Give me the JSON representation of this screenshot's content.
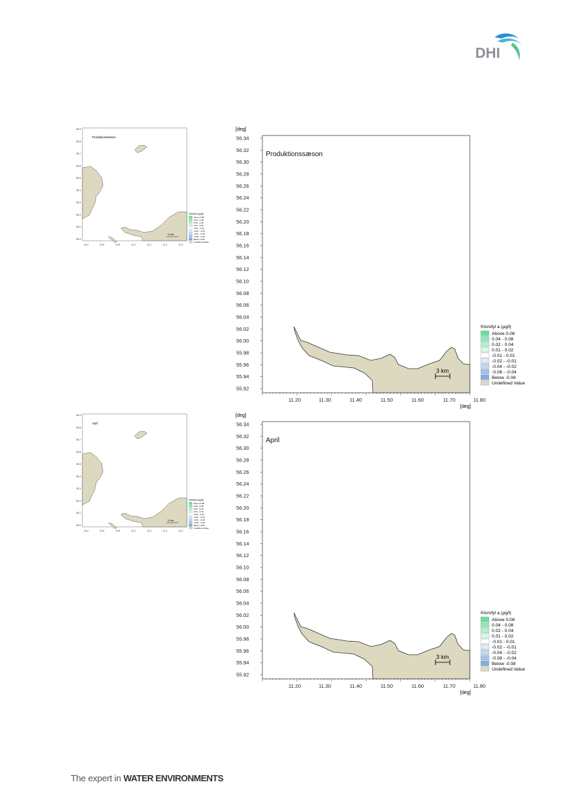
{
  "logo": {
    "text": "DHI"
  },
  "footer": {
    "prefix": "The expert in ",
    "bold": "WATER ENVIRONMENTS"
  },
  "colors": {
    "land": "#dcd9c0",
    "above": "#66e0a0"
  },
  "figures": [
    {
      "id": "production",
      "title": "Produktionssæson",
      "y_unit": "[deg]",
      "x_unit": "[deg]",
      "y_ticks": [
        "56.34",
        "56.32",
        "56.30",
        "56.28",
        "56.26",
        "56.24",
        "56.22",
        "56.20",
        "56.18",
        "56.16",
        "56.14",
        "56.12",
        "56.10",
        "56.08",
        "56.06",
        "56.04",
        "56.02",
        "56.00",
        "55.98",
        "55.96",
        "55.94",
        "55.92"
      ],
      "x_ticks": [
        "11.20",
        "11.30",
        "11.40",
        "11.50",
        "11.60",
        "11.70",
        "11.80"
      ],
      "scale_label": "3 km",
      "legend": {
        "title": "Klorofyl a (µg/l)",
        "items": [
          {
            "label": "Above  0.08",
            "color": "#66e0a0"
          },
          {
            "label": " 0.04 -  0.08",
            "color": "#8fe9b8"
          },
          {
            "label": " 0.02 -  0.04",
            "color": "#b5f0cf"
          },
          {
            "label": " 0.01 -  0.02",
            "color": "#daf7e6"
          },
          {
            "label": "-0.01 -  0.01",
            "color": "#ffffff"
          },
          {
            "label": "-0.02 - -0.01",
            "color": "#dfeaf8"
          },
          {
            "label": "-0.04 - -0.02",
            "color": "#c3d8f2"
          },
          {
            "label": "-0.08 - -0.04",
            "color": "#a2c3ec"
          },
          {
            "label": "Below -0.08",
            "color": "#7fade6"
          },
          {
            "label": "Undefined Value",
            "color": "#dcd9c0"
          }
        ]
      },
      "small": {
        "title": "Produktionssæson",
        "y_ticks": [
          "55.9",
          "55.8",
          "55.7",
          "55.6",
          "55.5",
          "55.4",
          "55.3",
          "55.2",
          "55.1",
          "55.0"
        ],
        "x_ticks": [
          "10.4",
          "10.6",
          "10.8",
          "11.0",
          "11.2",
          "11.4",
          "11.6"
        ],
        "scale_label": "10 km"
      }
    },
    {
      "id": "april",
      "title": "April",
      "y_unit": "[deg]",
      "x_unit": "[deg]",
      "y_ticks": [
        "56.34",
        "56.32",
        "56.30",
        "56.28",
        "56.26",
        "56.24",
        "56.22",
        "56.20",
        "56.18",
        "56.16",
        "56.14",
        "56.12",
        "56.10",
        "56.08",
        "56.06",
        "56.04",
        "56.02",
        "56.00",
        "55.98",
        "55.96",
        "55.94",
        "55.92"
      ],
      "x_ticks": [
        "11.20",
        "11.30",
        "11.40",
        "11.50",
        "11.60",
        "11.70",
        "11.80"
      ],
      "scale_label": "3 km",
      "legend": {
        "title": "Klorofyl a (µg/l)",
        "items": [
          {
            "label": "Above  0.08",
            "color": "#66e0a0"
          },
          {
            "label": " 0.04 -  0.08",
            "color": "#8fe9b8"
          },
          {
            "label": " 0.02 -  0.04",
            "color": "#b5f0cf"
          },
          {
            "label": " 0.01 -  0.02",
            "color": "#daf7e6"
          },
          {
            "label": "-0.01 -  0.01",
            "color": "#ffffff"
          },
          {
            "label": "-0.02 - -0.01",
            "color": "#dfeaf8"
          },
          {
            "label": "-0.04 - -0.02",
            "color": "#c3d8f2"
          },
          {
            "label": "-0.08 - -0.04",
            "color": "#a2c3ec"
          },
          {
            "label": "Below -0.08",
            "color": "#7fade6"
          },
          {
            "label": "Undefined Value",
            "color": "#dcd9c0"
          }
        ]
      },
      "small": {
        "title": "April",
        "y_ticks": [
          "55.9",
          "55.8",
          "55.7",
          "55.6",
          "55.5",
          "55.4",
          "55.3",
          "55.2",
          "55.1",
          "55.0"
        ],
        "x_ticks": [
          "10.4",
          "10.6",
          "10.8",
          "11.0",
          "11.2",
          "11.4",
          "11.6"
        ],
        "scale_label": "10 km"
      }
    }
  ]
}
